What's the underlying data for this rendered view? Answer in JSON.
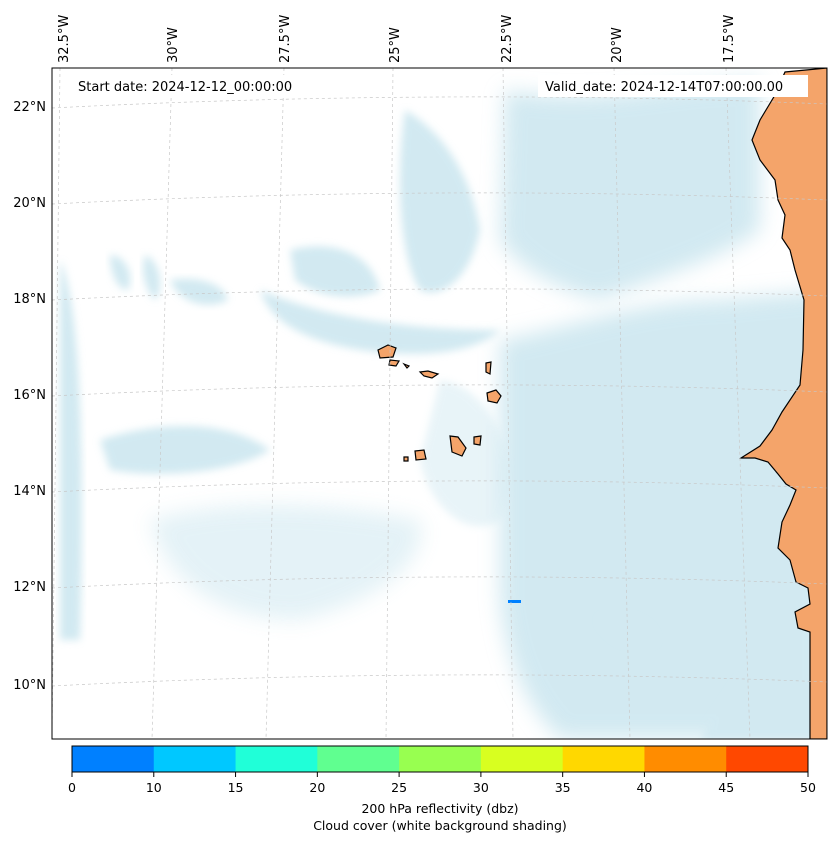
{
  "map": {
    "start_label": "Start date: 2024-12-12_00:00:00",
    "valid_label": "Valid_date: 2024-12-14T07:00:00.00",
    "lon_ticks": [
      "32.5°W",
      "30°W",
      "27.5°W",
      "25°W",
      "22.5°W",
      "20°W",
      "17.5°W"
    ],
    "lat_ticks": [
      "22°N",
      "20°N",
      "18°N",
      "16°N",
      "14°N",
      "12°N",
      "10°N"
    ],
    "colors": {
      "cloud": "#add8e6",
      "land": "#f4a46a",
      "coast": "#000000",
      "echo": "#0080ff"
    }
  },
  "colorbar": {
    "ticks": [
      "0",
      "10",
      "15",
      "20",
      "25",
      "30",
      "35",
      "40",
      "45",
      "50"
    ],
    "colors": [
      "#0080ff",
      "#00c8ff",
      "#20ffd8",
      "#60ff90",
      "#98ff50",
      "#d8ff20",
      "#ffd800",
      "#ff8c00",
      "#ff4800"
    ],
    "label_line1": "200 hPa reflectivity (dbz)",
    "label_line2": "Cloud cover (white background shading)"
  }
}
